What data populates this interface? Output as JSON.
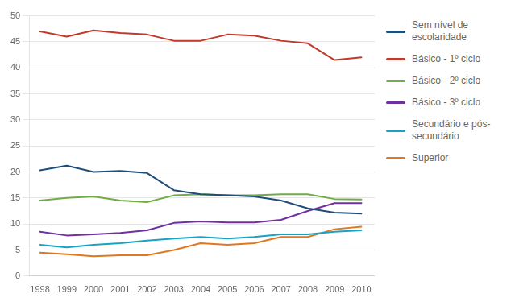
{
  "chart_data": {
    "type": "line",
    "x": [
      1998,
      1999,
      2000,
      2001,
      2002,
      2003,
      2004,
      2005,
      2006,
      2007,
      2008,
      2009,
      2010
    ],
    "xlim": [
      1997.6,
      2010.5
    ],
    "xticks": [
      1998,
      1999,
      2000,
      2001,
      2002,
      2003,
      2004,
      2005,
      2006,
      2007,
      2008,
      2009,
      2010
    ],
    "ylim": [
      0,
      50
    ],
    "yticks": [
      0,
      5,
      10,
      15,
      20,
      25,
      30,
      35,
      40,
      45,
      50
    ],
    "grid": "y",
    "legend": "right",
    "series": [
      {
        "name": "Sem nível de\nescolaridade",
        "color": "#1f4e79",
        "values": [
          20.3,
          21.2,
          20.0,
          20.2,
          19.8,
          16.5,
          15.7,
          15.5,
          15.3,
          14.5,
          13.0,
          12.2,
          12.0
        ]
      },
      {
        "name": "Básico - 1º ciclo",
        "color": "#c0392b",
        "values": [
          47.0,
          46.0,
          47.2,
          46.7,
          46.4,
          45.2,
          45.2,
          46.4,
          46.2,
          45.2,
          44.7,
          41.5,
          42.0
        ]
      },
      {
        "name": "Básico - 2º ciclo",
        "color": "#70ad47",
        "values": [
          14.5,
          15.0,
          15.3,
          14.5,
          14.2,
          15.5,
          15.7,
          15.5,
          15.5,
          15.7,
          15.7,
          14.8,
          14.7
        ]
      },
      {
        "name": "Básico - 3º ciclo",
        "color": "#7030a0",
        "values": [
          8.5,
          7.8,
          8.0,
          8.3,
          8.8,
          10.2,
          10.5,
          10.3,
          10.3,
          10.8,
          12.5,
          14.0,
          14.0
        ]
      },
      {
        "name": "Secundário e pós-\nsecundário",
        "color": "#17a3c4",
        "values": [
          6.0,
          5.5,
          6.0,
          6.3,
          6.8,
          7.2,
          7.5,
          7.2,
          7.5,
          8.0,
          8.0,
          8.5,
          8.8
        ]
      },
      {
        "name": "Superior",
        "color": "#e07820",
        "values": [
          4.5,
          4.2,
          3.8,
          4.0,
          4.0,
          5.0,
          6.3,
          6.0,
          6.3,
          7.5,
          7.5,
          9.0,
          9.5
        ]
      }
    ]
  }
}
